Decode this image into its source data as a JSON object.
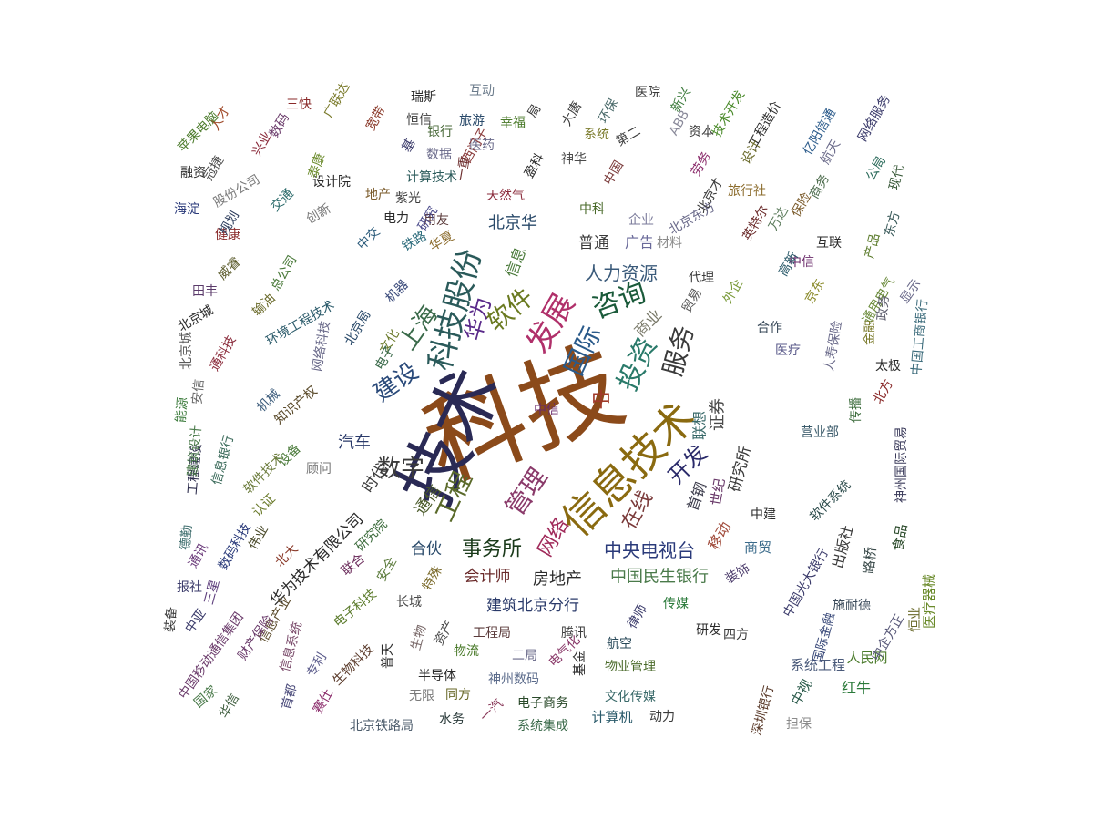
{
  "cloud": {
    "words": [
      {
        "text": "科技",
        "color": "#8b4a1a"
      },
      {
        "text": "技术",
        "color": "#2a2a55"
      },
      {
        "text": "信息技术",
        "color": "#8a6a10"
      },
      {
        "text": "科技股份",
        "color": "#2a5a5a"
      },
      {
        "text": "发展",
        "color": "#b0306a"
      },
      {
        "text": "软件",
        "color": "#6a7a20"
      },
      {
        "text": "咨询",
        "color": "#1a5a3a"
      },
      {
        "text": "华为",
        "color": "#5a2a8a"
      },
      {
        "text": "国际",
        "color": "#2a5a8a"
      },
      {
        "text": "投资",
        "color": "#2a7a6a"
      },
      {
        "text": "服务",
        "color": "#3a3a3a"
      },
      {
        "text": "上海",
        "color": "#3a6a4a"
      },
      {
        "text": "建设",
        "color": "#2a4a7a"
      },
      {
        "text": "数字",
        "color": "#3a3a3a"
      },
      {
        "text": "工程",
        "color": "#5a6a2a"
      },
      {
        "text": "管理",
        "color": "#8a3a6a"
      },
      {
        "text": "开发",
        "color": "#2a2a6a"
      },
      {
        "text": "在线",
        "color": "#7a3a3a"
      },
      {
        "text": "网络",
        "color": "#a02a5a"
      },
      {
        "text": "事务所",
        "color": "#1a3a1a"
      },
      {
        "text": "中央电视台",
        "color": "#2a3a7a"
      },
      {
        "text": "中国民生银行",
        "color": "#4a7a4a"
      },
      {
        "text": "房地产",
        "color": "#2a2a2a"
      },
      {
        "text": "会计师",
        "color": "#6a2a2a"
      },
      {
        "text": "建筑北京分行",
        "color": "#2a3a6a"
      },
      {
        "text": "华为技术有限公司",
        "color": "#2a2a2a"
      },
      {
        "text": "人力资源",
        "color": "#3a5a7a"
      },
      {
        "text": "普通",
        "color": "#3a3a3a"
      },
      {
        "text": "广告",
        "color": "#6a6a9a"
      },
      {
        "text": "北京华",
        "color": "#2a4a6a"
      },
      {
        "text": "信息",
        "color": "#4a7a3a"
      },
      {
        "text": "商业",
        "color": "#7a7a6a"
      },
      {
        "text": "证券",
        "color": "#4a4a4a"
      },
      {
        "text": "联想",
        "color": "#3a6a6a"
      },
      {
        "text": "研究所",
        "color": "#3a3a3a"
      },
      {
        "text": "中",
        "color": "#a03a2a"
      },
      {
        "text": "汽车",
        "color": "#2a3a6a"
      },
      {
        "text": "通信",
        "color": "#4a5a2a"
      },
      {
        "text": "时代",
        "color": "#3a3a3a"
      },
      {
        "text": "合伙",
        "color": "#2a4a6a"
      },
      {
        "text": "首钢",
        "color": "#3a3a4a"
      },
      {
        "text": "世纪",
        "color": "#6a3a6a"
      },
      {
        "text": "移动",
        "color": "#a04a3a"
      },
      {
        "text": "商贸",
        "color": "#3a6a8a"
      },
      {
        "text": "出版社",
        "color": "#3a3a3a"
      },
      {
        "text": "路桥",
        "color": "#3a4a4a"
      },
      {
        "text": "食品",
        "color": "#2a4a2a"
      },
      {
        "text": "医疗器械",
        "color": "#6a8a2a"
      },
      {
        "text": "红牛",
        "color": "#2a7a3a"
      },
      {
        "text": "人民网",
        "color": "#4a7a2a"
      },
      {
        "text": "系统工程",
        "color": "#4a5a7a"
      },
      {
        "text": "担保",
        "color": "#8a8a8a"
      },
      {
        "text": "中视",
        "color": "#2a5a4a"
      },
      {
        "text": "深圳银行",
        "color": "#5a3a2a"
      },
      {
        "text": "计算机",
        "color": "#2a5a6a"
      },
      {
        "text": "动力",
        "color": "#3a3a3a"
      },
      {
        "text": "系统集成",
        "color": "#3a6a4a"
      },
      {
        "text": "电子商务",
        "color": "#2a4a2a"
      },
      {
        "text": "文化传媒",
        "color": "#3a6a6a"
      },
      {
        "text": "北京铁路局",
        "color": "#4a5a6a"
      },
      {
        "text": "水务",
        "color": "#2a3a3a"
      },
      {
        "text": "一汽",
        "color": "#8a3a5a"
      },
      {
        "text": "无限",
        "color": "#7a7a7a"
      },
      {
        "text": "同方",
        "color": "#6a6a2a"
      },
      {
        "text": "神州数码",
        "color": "#5a6a8a"
      },
      {
        "text": "半导体",
        "color": "#2a2a2a"
      },
      {
        "text": "物流",
        "color": "#4a7a2a"
      },
      {
        "text": "二局",
        "color": "#6a6a8a"
      },
      {
        "text": "工程局",
        "color": "#5a3a3a"
      },
      {
        "text": "腾讯",
        "color": "#3a3a3a"
      },
      {
        "text": "航空",
        "color": "#2a4a5a"
      },
      {
        "text": "物业管理",
        "color": "#4a6a2a"
      },
      {
        "text": "传媒",
        "color": "#2a7a3a"
      },
      {
        "text": "研发",
        "color": "#2a2a2a"
      },
      {
        "text": "四方",
        "color": "#3a3a3a"
      },
      {
        "text": "长城",
        "color": "#4a4a4a"
      },
      {
        "text": "特殊",
        "color": "#7a6a2a"
      },
      {
        "text": "联合",
        "color": "#6a2a5a"
      },
      {
        "text": "安全",
        "color": "#5a7a3a"
      },
      {
        "text": "研究院",
        "color": "#3a6a3a"
      },
      {
        "text": "北大",
        "color": "#8a3a2a"
      },
      {
        "text": "伟业",
        "color": "#4a4a2a"
      },
      {
        "text": "数码科技",
        "color": "#2a3a7a"
      },
      {
        "text": "三星",
        "color": "#5a3a7a"
      },
      {
        "text": "报社",
        "color": "#3a3a6a"
      },
      {
        "text": "装备",
        "color": "#3a3a3a"
      },
      {
        "text": "人才",
        "color": "#a04a2a"
      },
      {
        "text": "苹果电脑",
        "color": "#4a7a2a"
      },
      {
        "text": "三快",
        "color": "#8a2a2a"
      },
      {
        "text": "数码",
        "color": "#6a3a6a"
      },
      {
        "text": "广联达",
        "color": "#7a7a2a"
      },
      {
        "text": "瑞斯",
        "color": "#2a2a2a"
      },
      {
        "text": "互动",
        "color": "#6a7a8a"
      },
      {
        "text": "医院",
        "color": "#3a3a3a"
      },
      {
        "text": "环保",
        "color": "#4a6a6a"
      },
      {
        "text": "新兴",
        "color": "#3a7a3a"
      },
      {
        "text": "技术开发",
        "color": "#4a8a2a"
      },
      {
        "text": "工程造价",
        "color": "#2a2a2a"
      },
      {
        "text": "亿阳信通",
        "color": "#2a5a8a"
      },
      {
        "text": "网络服务",
        "color": "#3a3a6a"
      },
      {
        "text": "旅游",
        "color": "#2a4a6a"
      },
      {
        "text": "恒信",
        "color": "#3a3a3a"
      },
      {
        "text": "宽带",
        "color": "#8a3a2a"
      },
      {
        "text": "融资",
        "color": "#2a2a2a"
      },
      {
        "text": "海淀",
        "color": "#2a3a7a"
      },
      {
        "text": "冠捷",
        "color": "#4a4a4a"
      },
      {
        "text": "股份公司",
        "color": "#7a7a7a"
      },
      {
        "text": "设计院",
        "color": "#2a2a2a"
      },
      {
        "text": "计算技术",
        "color": "#2a5a5a"
      },
      {
        "text": "天然气",
        "color": "#8a2a3a"
      },
      {
        "text": "北京东方",
        "color": "#6a6a8a"
      },
      {
        "text": "英特尔",
        "color": "#6a2a2a"
      },
      {
        "text": "互联",
        "color": "#2a2a2a"
      },
      {
        "text": "东方",
        "color": "#3a5a5a"
      },
      {
        "text": "产品",
        "color": "#5a7a2a"
      },
      {
        "text": "公局",
        "color": "#2a6a5a"
      },
      {
        "text": "现代",
        "color": "#3a5a3a"
      },
      {
        "text": "企业",
        "color": "#7a7a9a"
      },
      {
        "text": "中科",
        "color": "#4a6a2a"
      },
      {
        "text": "电力",
        "color": "#2a2a2a"
      },
      {
        "text": "用友",
        "color": "#5a3a3a"
      },
      {
        "text": "中交",
        "color": "#2a5a7a"
      },
      {
        "text": "健康",
        "color": "#8a2a2a"
      },
      {
        "text": "威睿",
        "color": "#5a5a2a"
      },
      {
        "text": "田丰",
        "color": "#5a3a6a"
      },
      {
        "text": "北京城",
        "color": "#2a2a2a"
      },
      {
        "text": "输油",
        "color": "#6a6a2a"
      },
      {
        "text": "环境工程技术",
        "color": "#2a5a6a"
      },
      {
        "text": "北京局",
        "color": "#2a4a6a"
      },
      {
        "text": "机器",
        "color": "#3a4a7a"
      },
      {
        "text": "文化",
        "color": "#6a7a2a"
      },
      {
        "text": "电子",
        "color": "#3a6a4a"
      },
      {
        "text": "网络科技",
        "color": "#6a6a8a"
      },
      {
        "text": "知识产权",
        "color": "#5a4a2a"
      },
      {
        "text": "能源",
        "color": "#3a7a3a"
      },
      {
        "text": "安信",
        "color": "#6a6a6a"
      },
      {
        "text": "工程建设",
        "color": "#2a2a4a"
      },
      {
        "text": "软件技术",
        "color": "#6a7a3a"
      },
      {
        "text": "设备",
        "color": "#4a7a3a"
      },
      {
        "text": "顾问",
        "color": "#7a7a7a"
      },
      {
        "text": "代理",
        "color": "#3a3a3a"
      },
      {
        "text": "贸易",
        "color": "#5a5a5a"
      },
      {
        "text": "外企",
        "color": "#7a9a3a"
      },
      {
        "text": "中信",
        "color": "#6a2a6a"
      },
      {
        "text": "京东",
        "color": "#8a8a2a"
      },
      {
        "text": "合作",
        "color": "#3a4a5a"
      },
      {
        "text": "医疗",
        "color": "#5a5a8a"
      },
      {
        "text": "人寿保险",
        "color": "#6a6a8a"
      },
      {
        "text": "太极",
        "color": "#2a2a2a"
      },
      {
        "text": "中国工商银行",
        "color": "#3a6a7a"
      },
      {
        "text": "通用电气",
        "color": "#6a8a3a"
      },
      {
        "text": "金融",
        "color": "#7a7a2a"
      },
      {
        "text": "政务",
        "color": "#5a5a6a"
      },
      {
        "text": "显示",
        "color": "#6a6a8a"
      },
      {
        "text": "北方",
        "color": "#8a2a2a"
      },
      {
        "text": "传播",
        "color": "#3a6a3a"
      },
      {
        "text": "营业部",
        "color": "#3a5a6a"
      },
      {
        "text": "神州国际贸易",
        "color": "#3a3a5a"
      },
      {
        "text": "软件系统",
        "color": "#2a4a4a"
      },
      {
        "text": "中建",
        "color": "#2a2a2a"
      },
      {
        "text": "中国光大银行",
        "color": "#3a3a6a"
      },
      {
        "text": "施耐德",
        "color": "#3a4a5a"
      },
      {
        "text": "国际金融",
        "color": "#3a4a7a"
      },
      {
        "text": "中企方正",
        "color": "#5a5a7a"
      },
      {
        "text": "恒业",
        "color": "#6a6a2a"
      },
      {
        "text": "装饰",
        "color": "#4a3a6a"
      },
      {
        "text": "律师",
        "color": "#3a3a6a"
      },
      {
        "text": "电气化",
        "color": "#8a3a6a"
      },
      {
        "text": "基金",
        "color": "#2a2a2a"
      },
      {
        "text": "资产",
        "color": "#4a4a4a"
      },
      {
        "text": "生物",
        "color": "#7a6a6a"
      },
      {
        "text": "普天",
        "color": "#2a2a2a"
      },
      {
        "text": "电子科技",
        "color": "#5a7a2a"
      },
      {
        "text": "生物科技",
        "color": "#5a3a2a"
      },
      {
        "text": "信息系统",
        "color": "#7a4a6a"
      },
      {
        "text": "信息产业",
        "color": "#5a4a2a"
      },
      {
        "text": "专利",
        "color": "#5a5a8a"
      },
      {
        "text": "财产保险",
        "color": "#6a3a6a"
      },
      {
        "text": "中国移动通信集团",
        "color": "#6a3a6a"
      },
      {
        "text": "国家",
        "color": "#4a7a4a"
      },
      {
        "text": "华信",
        "color": "#3a5a3a"
      },
      {
        "text": "首都",
        "color": "#4a4a7a"
      },
      {
        "text": "赛仕",
        "color": "#8a2a6a"
      },
      {
        "text": "中亚",
        "color": "#3a3a6a"
      },
      {
        "text": "认证",
        "color": "#6a7a2a"
      },
      {
        "text": "德勤",
        "color": "#3a6a6a"
      },
      {
        "text": "建筑设计",
        "color": "#4a7a4a"
      },
      {
        "text": "通讯",
        "color": "#6a3a7a"
      },
      {
        "text": "信息银行",
        "color": "#3a6a5a"
      },
      {
        "text": "机械",
        "color": "#3a5a7a"
      },
      {
        "text": "通科技",
        "color": "#8a2a3a"
      },
      {
        "text": "北京城",
        "color": "#5a5a5a"
      },
      {
        "text": "总公司",
        "color": "#4a7a3a"
      },
      {
        "text": "创新",
        "color": "#7a7a7a"
      },
      {
        "text": "交通",
        "color": "#2a6a6a"
      },
      {
        "text": "泰康",
        "color": "#6a8a2a"
      },
      {
        "text": "兴业",
        "color": "#8a2a3a"
      },
      {
        "text": "规划",
        "color": "#2a3a5a"
      },
      {
        "text": "地产",
        "color": "#7a5a2a"
      },
      {
        "text": "紫光",
        "color": "#3a3a3a"
      },
      {
        "text": "华夏",
        "color": "#8a6a2a"
      },
      {
        "text": "铁路",
        "color": "#2a6a7a"
      },
      {
        "text": "研究",
        "color": "#4a4a8a"
      },
      {
        "text": "系统",
        "color": "#7a7a2a"
      },
      {
        "text": "第二",
        "color": "#3a3a3a"
      },
      {
        "text": "ABB",
        "color": "#8a8a9a"
      },
      {
        "text": "资本",
        "color": "#3a3a3a"
      },
      {
        "text": "劳务",
        "color": "#8a2a6a"
      },
      {
        "text": "设计",
        "color": "#6a6a2a"
      },
      {
        "text": "航天",
        "color": "#6a6a8a"
      },
      {
        "text": "商务",
        "color": "#4a6a4a"
      },
      {
        "text": "保险",
        "color": "#7a5a2a"
      },
      {
        "text": "旅行社",
        "color": "#8a6a2a"
      },
      {
        "text": "北京才",
        "color": "#3a3a3a"
      },
      {
        "text": "万达",
        "color": "#5a7a5a"
      },
      {
        "text": "材料",
        "color": "#8a8a8a"
      },
      {
        "text": "局",
        "color": "#3a3a3a"
      },
      {
        "text": "大唐",
        "color": "#3a3a3a"
      },
      {
        "text": "幸福",
        "color": "#4a7a2a"
      },
      {
        "text": "医药",
        "color": "#6a6a8a"
      },
      {
        "text": "数据",
        "color": "#6a6a8a"
      },
      {
        "text": "盈科",
        "color": "#2a2a2a"
      },
      {
        "text": "西门子",
        "color": "#8a3a3a"
      },
      {
        "text": "一重",
        "color": "#6a2a2a"
      },
      {
        "text": "基",
        "color": "#3a3a6a"
      },
      {
        "text": "银行",
        "color": "#4a6a3a"
      },
      {
        "text": "神华",
        "color": "#4a4a4a"
      },
      {
        "text": "中国",
        "color": "#7a3a3a"
      },
      {
        "text": "高新",
        "color": "#2a5a6a"
      },
      {
        "text": "中信",
        "color": "#6a2a6a"
      }
    ]
  }
}
